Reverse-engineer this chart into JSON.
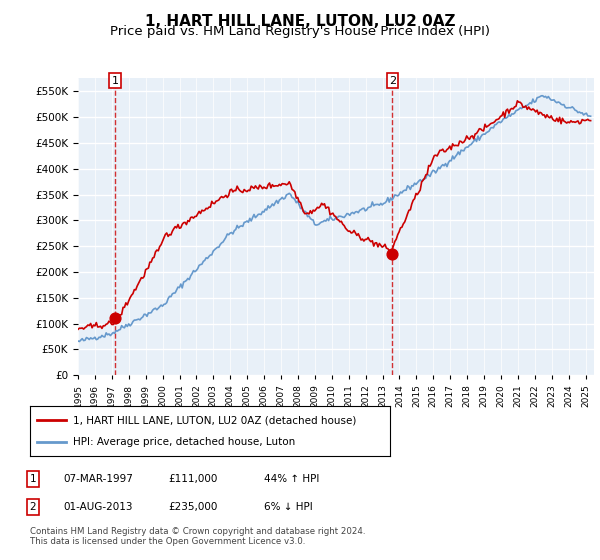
{
  "title": "1, HART HILL LANE, LUTON, LU2 0AZ",
  "subtitle": "Price paid vs. HM Land Registry's House Price Index (HPI)",
  "ylabel_ticks": [
    "£0",
    "£50K",
    "£100K",
    "£150K",
    "£200K",
    "£250K",
    "£300K",
    "£350K",
    "£400K",
    "£450K",
    "£500K",
    "£550K"
  ],
  "ylim": [
    0,
    575000
  ],
  "yticks": [
    0,
    50000,
    100000,
    150000,
    200000,
    250000,
    300000,
    350000,
    400000,
    450000,
    500000,
    550000
  ],
  "xlim_start": 1995.0,
  "xlim_end": 2025.5,
  "background_color": "#e8f0f8",
  "grid_color": "#ffffff",
  "sale1_x": 1997.18,
  "sale1_y": 111000,
  "sale1_label": "1",
  "sale2_x": 2013.58,
  "sale2_y": 235000,
  "sale2_label": "2",
  "red_line_color": "#cc0000",
  "blue_line_color": "#6699cc",
  "legend_label_red": "1, HART HILL LANE, LUTON, LU2 0AZ (detached house)",
  "legend_label_blue": "HPI: Average price, detached house, Luton",
  "table_entries": [
    {
      "num": "1",
      "date": "07-MAR-1997",
      "price": "£111,000",
      "hpi": "44% ↑ HPI"
    },
    {
      "num": "2",
      "date": "01-AUG-2013",
      "price": "£235,000",
      "hpi": "6% ↓ HPI"
    }
  ],
  "footer": "Contains HM Land Registry data © Crown copyright and database right 2024.\nThis data is licensed under the Open Government Licence v3.0.",
  "title_fontsize": 11,
  "subtitle_fontsize": 9.5
}
